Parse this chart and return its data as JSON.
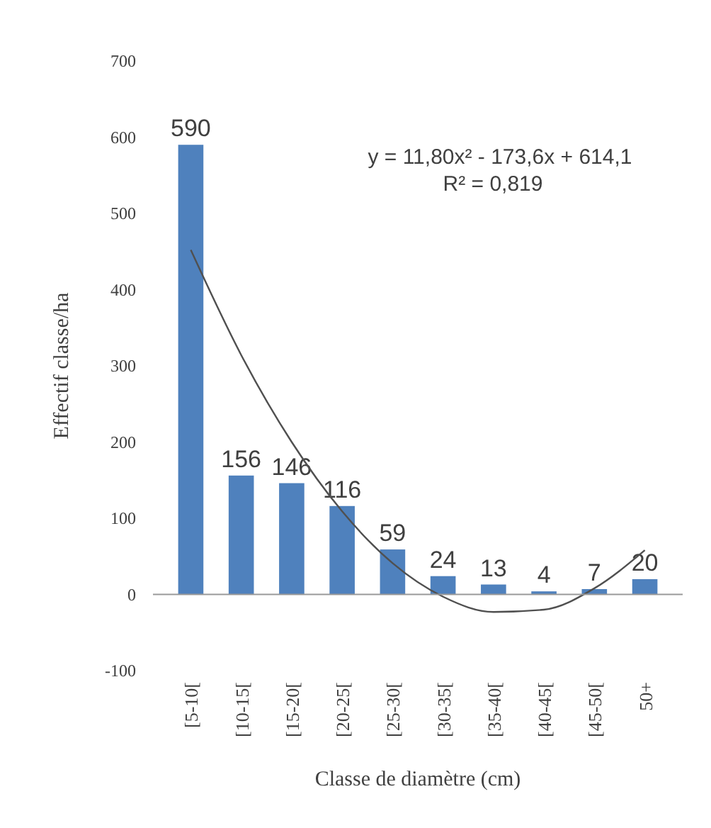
{
  "chart_data": {
    "type": "bar",
    "xlabel": "Classe de diamètre (cm)",
    "ylabel": "Effectif classe/ha",
    "categories": [
      "[5-10[",
      "[10-15[",
      "[15-20[",
      "[20-25[",
      "[25-30[",
      "[30-35[",
      "[35-40[",
      "[40-45[",
      "[45-50[",
      "50+"
    ],
    "series": [
      {
        "color": "#4f81bd",
        "values": [
          590,
          156,
          146,
          116,
          59,
          24,
          13,
          4,
          7,
          20
        ],
        "value_labels": [
          "590",
          "156",
          "146",
          "116",
          "59",
          "24",
          "13",
          "4",
          "7",
          "20"
        ]
      },
      {
        "type": "line",
        "color": "#505050",
        "x": [
          "[5-10[",
          "[10-15[",
          "[15-20[",
          "[20-25[",
          "[25-30[",
          "[30-35[",
          "[35-40[",
          "[40-45[",
          "[45-50[",
          "50+"
        ],
        "values": [
          452,
          314,
          200,
          109,
          41,
          -3,
          -23,
          -20,
          8,
          58
        ]
      }
    ],
    "ylim": [
      -100,
      700
    ],
    "yticks": [
      -100,
      0,
      100,
      200,
      300,
      400,
      500,
      600,
      700
    ],
    "annotations": [
      "y = 11,80x² - 173,6x + 614,1",
      "R² = 0,819"
    ]
  }
}
